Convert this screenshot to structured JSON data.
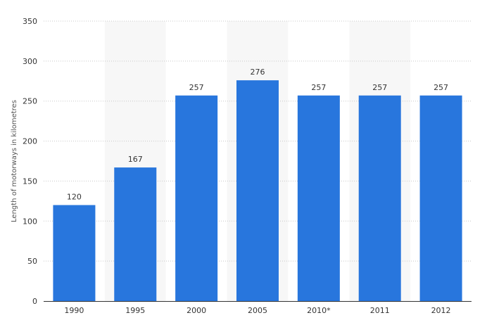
{
  "chart_data": {
    "type": "bar",
    "categories": [
      "1990",
      "1995",
      "2000",
      "2005",
      "2010*",
      "2011",
      "2012"
    ],
    "values": [
      120,
      167,
      257,
      276,
      257,
      257,
      257
    ],
    "data_labels": [
      "120",
      "167",
      "257",
      "276",
      "257",
      "257",
      "257"
    ],
    "title": "",
    "xlabel": "",
    "ylabel": "Length of motorways in kilometres",
    "ylim": [
      0,
      350
    ],
    "yticks": [
      0,
      50,
      100,
      150,
      200,
      250,
      300,
      350
    ],
    "grid": true,
    "alternating_column_bands": true,
    "legend": "none"
  },
  "colors": {
    "bar": "#2876dd",
    "band": "#f7f7f7",
    "grid": "#c8c8c8",
    "axis": "#333333",
    "text": "#333333"
  }
}
